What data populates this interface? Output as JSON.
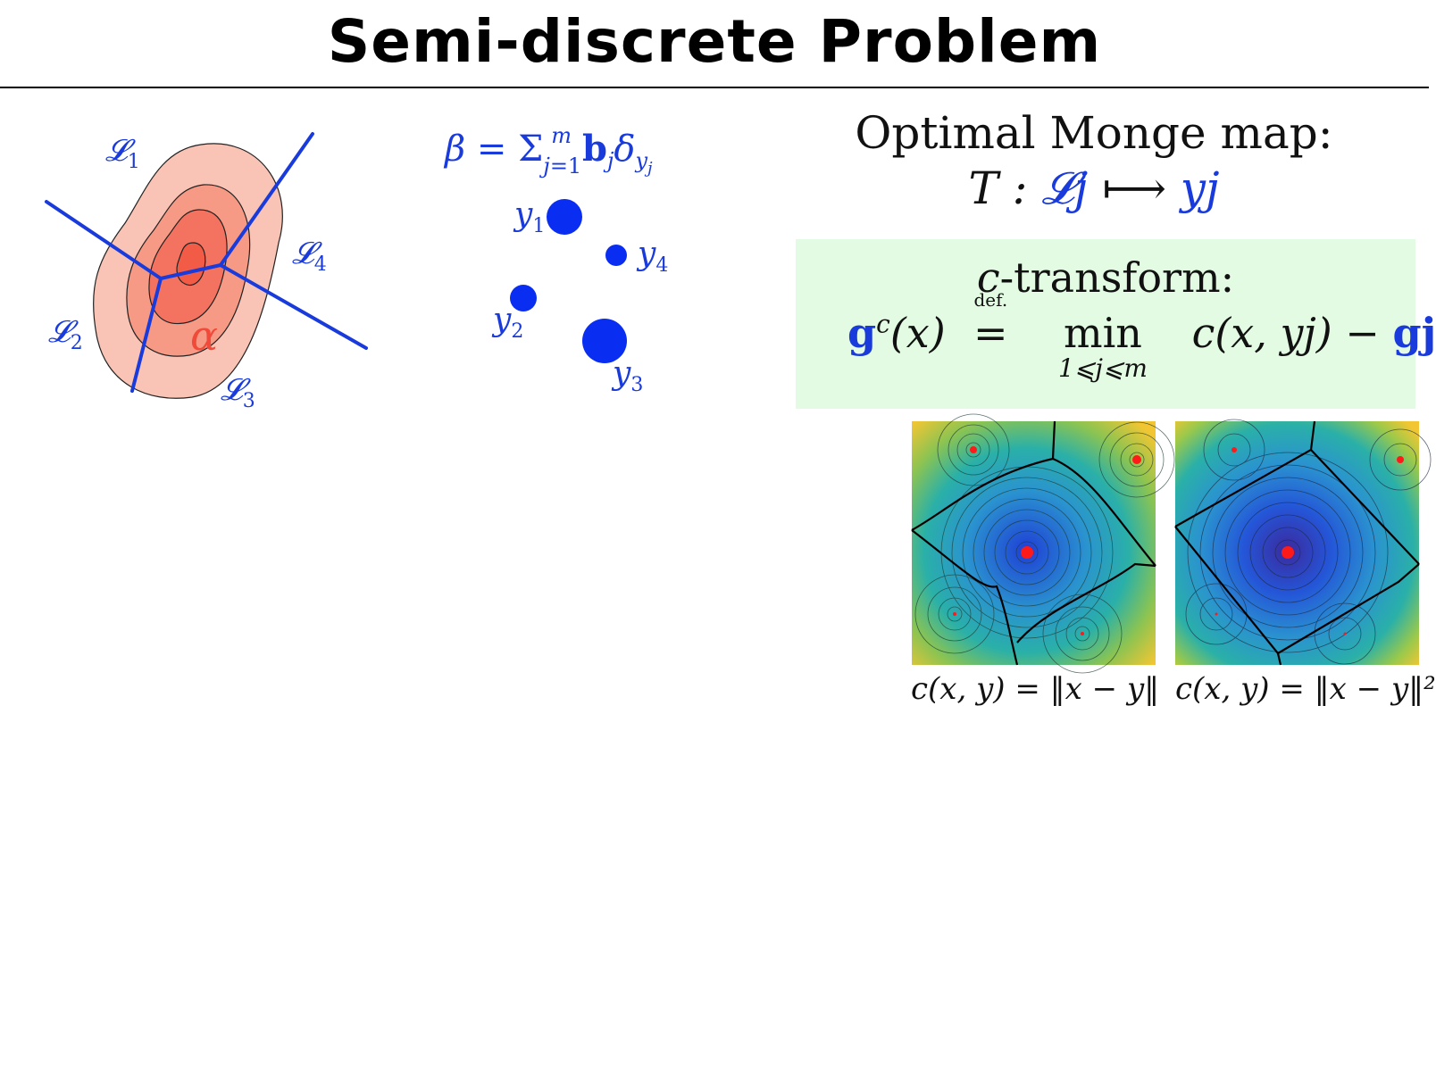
{
  "slide": {
    "title": "Semi-discrete Problem"
  },
  "left_diagram": {
    "alpha_label": "α",
    "cell_labels": [
      "𝓛1",
      "𝓛2",
      "𝓛3",
      "𝓛4"
    ],
    "beta_formula": "β = Σj=1m bj δyj",
    "point_labels": [
      "y1",
      "y2",
      "y3",
      "y4"
    ],
    "point_weights": [
      0.28,
      0.22,
      0.5,
      0.16
    ],
    "colors": {
      "alpha": "#f04a3a",
      "beta": "#1a3bdb",
      "contour_fill": [
        "#f9c3b5",
        "#f79a85",
        "#f47360",
        "#f25c47"
      ]
    }
  },
  "monge": {
    "line1": "Optimal Monge map:",
    "map_T": "T :",
    "map_L": "𝓛j",
    "map_arrow": "⟼",
    "map_y": "yj"
  },
  "c_transform": {
    "title_c": "c",
    "title_rest": "-transform:",
    "lhs_g": "g",
    "lhs_sup": "c",
    "lhs_arg": "(x)",
    "defeq_top": "def.",
    "defeq_sym": "=",
    "min_word": "min",
    "min_sub": "1⩽j⩽m",
    "rhs_c": "c(x, yj) −",
    "rhs_g": "gj",
    "box_color": "#e2fbe2"
  },
  "panels": [
    {
      "caption": "c(x, y) = ‖x − y‖"
    },
    {
      "caption": "c(x, y) = ‖x − y‖²"
    }
  ]
}
